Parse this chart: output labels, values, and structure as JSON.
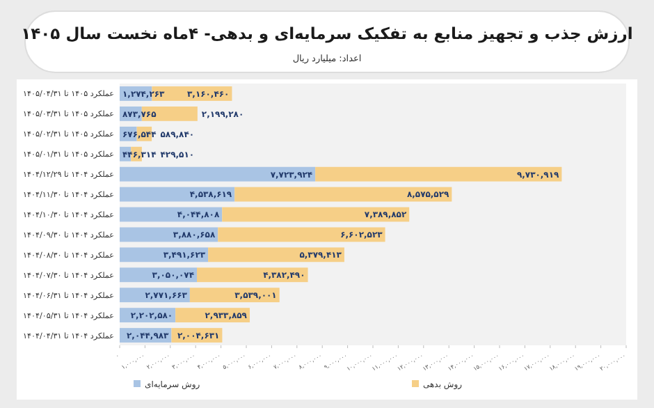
{
  "chart_data": {
    "type": "bar",
    "orientation": "horizontal",
    "stacked": true,
    "title": "ارزش جذب و تجهیز منابع به تفکیک سرمایه‌ای و بدهی- ۴ماه نخست سال ۱۴۰۵",
    "subtitle": "اعداد: میلیارد ریال",
    "categories": [
      "عملکرد ۱۴۰۵ تا ۱۴۰۵/۰۴/۳۱",
      "عملکرد ۱۴۰۵ تا ۱۴۰۵/۰۳/۳۱",
      "عملکرد ۱۴۰۵ تا ۱۴۰۵/۰۲/۳۱",
      "عملکرد ۱۴۰۵ تا ۱۴۰۵/۰۱/۳۱",
      "عملکرد ۱۴۰۴ تا ۱۴۰۴/۱۲/۲۹",
      "عملکرد ۱۴۰۴ تا ۱۴۰۴/۱۱/۳۰",
      "عملکرد ۱۴۰۴ تا ۱۴۰۴/۱۰/۳۰",
      "عملکرد ۱۴۰۴ تا ۱۴۰۴/۰۹/۳۰",
      "عملکرد ۱۴۰۴ تا ۱۴۰۴/۰۸/۳۰",
      "عملکرد ۱۴۰۴ تا ۱۴۰۴/۰۷/۳۰",
      "عملکرد ۱۴۰۴ تا ۱۴۰۴/۰۶/۳۱",
      "عملکرد ۱۴۰۴ تا ۱۴۰۴/۰۵/۳۱",
      "عملکرد ۱۴۰۴ تا ۱۴۰۴/۰۴/۳۱"
    ],
    "series": [
      {
        "name": "روش سرمایه‌ای",
        "color": "#a9c4e4",
        "values": [
          1274263,
          873765,
          676544,
          446314,
          7723924,
          4538619,
          4044808,
          3880658,
          3491623,
          3050074,
          2771663,
          2202580,
          2044983
        ],
        "value_labels": [
          "۱,۲۷۴,۲۶۳",
          "۸۷۳,۷۶۵",
          "۶۷۶,۵۴۴",
          "۴۴۶,۳۱۴",
          "۷,۷۲۳,۹۲۴",
          "۴,۵۳۸,۶۱۹",
          "۴,۰۴۴,۸۰۸",
          "۳,۸۸۰,۶۵۸",
          "۳,۴۹۱,۶۲۳",
          "۳,۰۵۰,۰۷۴",
          "۲,۷۷۱,۶۶۳",
          "۲,۲۰۲,۵۸۰",
          "۲,۰۴۴,۹۸۳"
        ]
      },
      {
        "name": "روش بدهی",
        "color": "#f6cf87",
        "values": [
          3160460,
          2199280,
          589840,
          429510,
          9730919,
          8575529,
          7389852,
          6602523,
          5379413,
          4382490,
          3539001,
          2933859,
          2004631
        ],
        "value_labels": [
          "۳,۱۶۰,۴۶۰",
          "۲,۱۹۹,۲۸۰",
          "۵۸۹,۸۴۰",
          "۴۲۹,۵۱۰",
          "۹,۷۳۰,۹۱۹",
          "۸,۵۷۵,۵۲۹",
          "۷,۳۸۹,۸۵۲",
          "۶,۶۰۲,۵۲۳",
          "۵,۳۷۹,۴۱۳",
          "۴,۳۸۲,۴۹۰",
          "۳,۵۳۹,۰۰۱",
          "۲,۹۳۳,۸۵۹",
          "۲,۰۰۴,۶۳۱"
        ]
      }
    ],
    "xlim": [
      0,
      20000000
    ],
    "xticks": [
      {
        "value": 0,
        "label": "۰"
      },
      {
        "value": 1000000,
        "label": "۱,۰۰۰,۰۰۰"
      },
      {
        "value": 2000000,
        "label": "۲,۰۰۰,۰۰۰"
      },
      {
        "value": 3000000,
        "label": "۳,۰۰۰,۰۰۰"
      },
      {
        "value": 4000000,
        "label": "۴,۰۰۰,۰۰۰"
      },
      {
        "value": 5000000,
        "label": "۵,۰۰۰,۰۰۰"
      },
      {
        "value": 6000000,
        "label": "۶,۰۰۰,۰۰۰"
      },
      {
        "value": 7000000,
        "label": "۷,۰۰۰,۰۰۰"
      },
      {
        "value": 8000000,
        "label": "۸,۰۰۰,۰۰۰"
      },
      {
        "value": 9000000,
        "label": "۹,۰۰۰,۰۰۰"
      },
      {
        "value": 10000000,
        "label": "۱۰,۰۰۰,۰۰۰"
      },
      {
        "value": 11000000,
        "label": "۱۱,۰۰۰,۰۰۰"
      },
      {
        "value": 12000000,
        "label": "۱۲,۰۰۰,۰۰۰"
      },
      {
        "value": 13000000,
        "label": "۱۳,۰۰۰,۰۰۰"
      },
      {
        "value": 14000000,
        "label": "۱۴,۰۰۰,۰۰۰"
      },
      {
        "value": 15000000,
        "label": "۱۵,۰۰۰,۰۰۰"
      },
      {
        "value": 16000000,
        "label": "۱۶,۰۰۰,۰۰۰"
      },
      {
        "value": 17000000,
        "label": "۱۷,۰۰۰,۰۰۰"
      },
      {
        "value": 18000000,
        "label": "۱۸,۰۰۰,۰۰۰"
      },
      {
        "value": 19000000,
        "label": "۱۹,۰۰۰,۰۰۰"
      },
      {
        "value": 20000000,
        "label": "۲۰,۰۰۰,۰۰۰"
      }
    ],
    "grid": false,
    "legend": "bottom"
  }
}
